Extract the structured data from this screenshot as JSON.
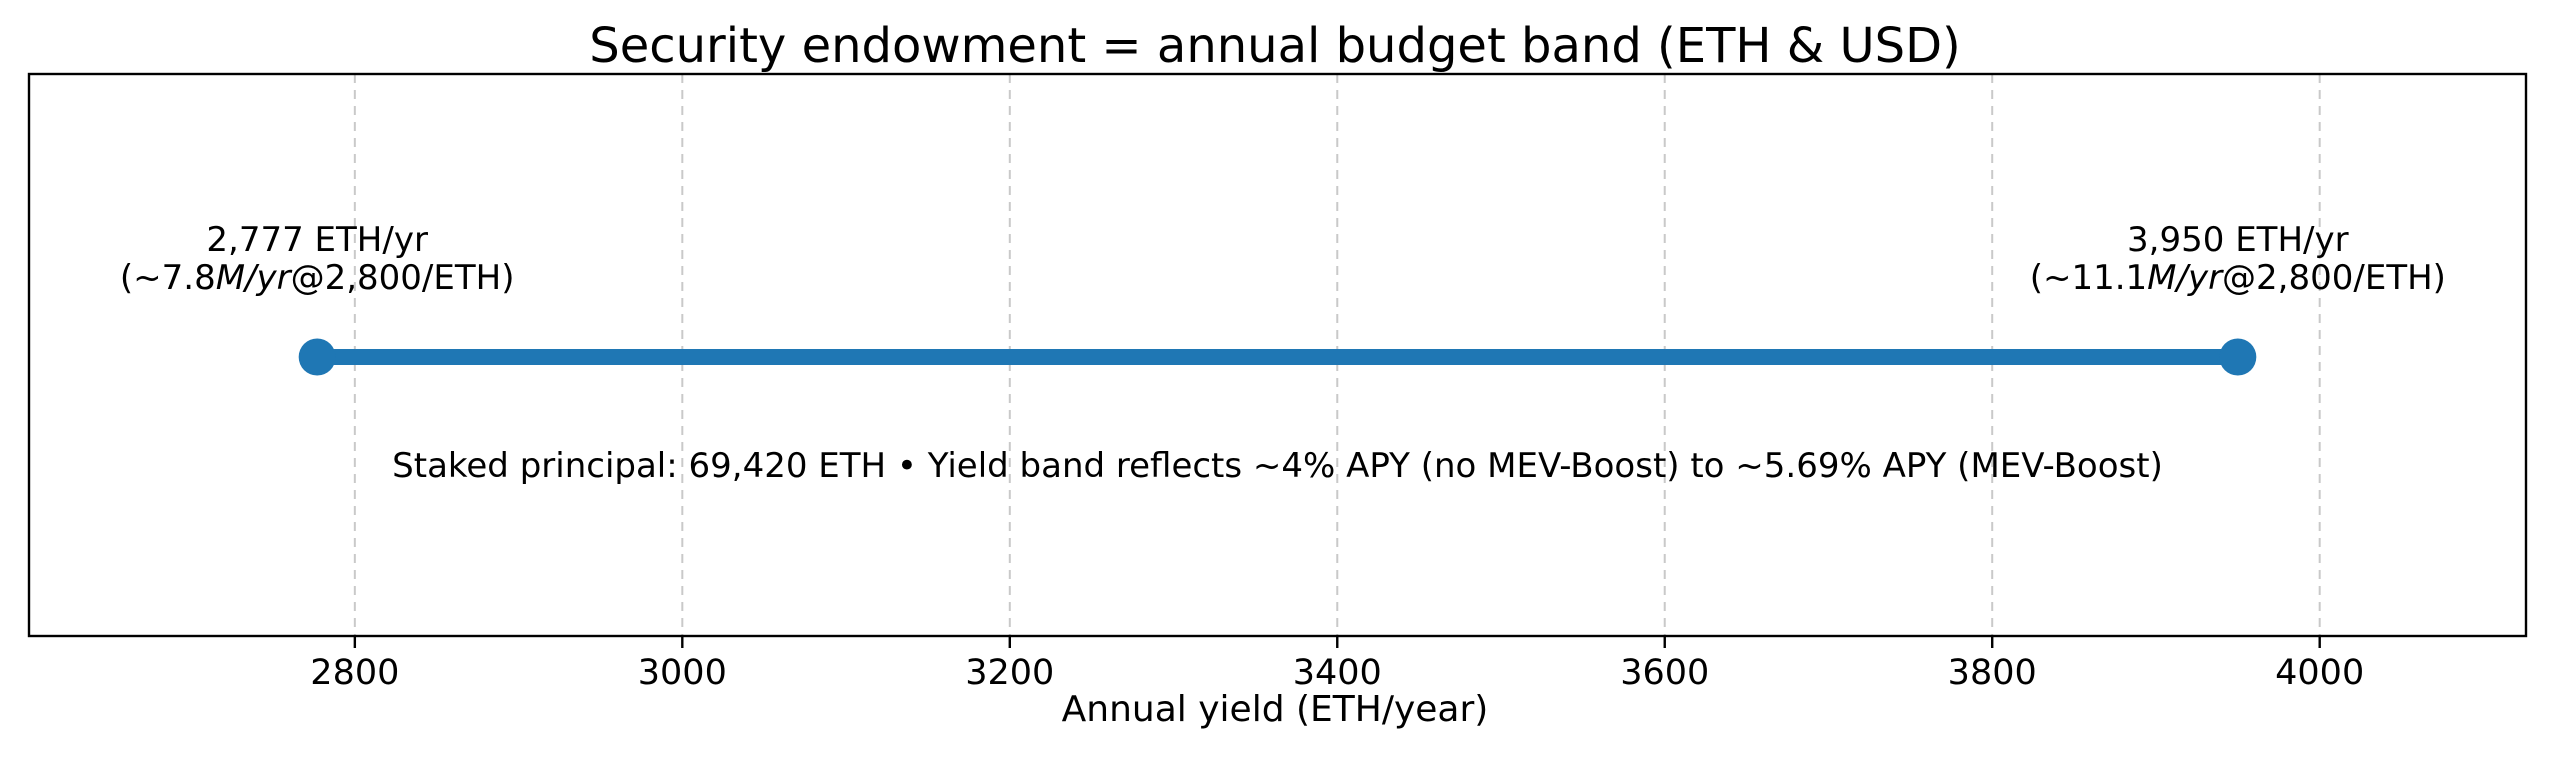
{
  "chart_data": {
    "type": "range-band",
    "title": "Security endowment = annual budget band (ETH & USD)",
    "xlabel": "Annual yield (ETH/year)",
    "xlim": [
      2601,
      4126
    ],
    "xticks": [
      2800,
      3000,
      3200,
      3400,
      3600,
      3800,
      4000
    ],
    "grid": {
      "on": true,
      "axis": "x",
      "style": "dashed",
      "color": "#c9c9c9"
    },
    "band": {
      "start": 2777,
      "end": 3950,
      "color": "#1f77b4"
    },
    "annotations": [
      {
        "id": "band-start",
        "x": 2777,
        "line1": "2,777 ETH/yr",
        "line2_segments": [
          {
            "text": "(~7.8",
            "italic": false
          },
          {
            "text": "M/yr",
            "italic": true
          },
          {
            "text": "@2,800/ETH)",
            "italic": false
          }
        ]
      },
      {
        "id": "band-end",
        "x": 3950,
        "line1": "3,950 ETH/yr",
        "line2_segments": [
          {
            "text": "(~11.1",
            "italic": false
          },
          {
            "text": "M/yr",
            "italic": true
          },
          {
            "text": "@2,800/ETH)",
            "italic": false
          }
        ]
      }
    ],
    "note": "Staked principal: 69,420 ETH • Yield band reflects ~4% APY (no MEV-Boost) to ~5.69% APY (MEV-Boost)",
    "frame_color": "#000000",
    "text_color": "#000000",
    "legend": "none"
  }
}
